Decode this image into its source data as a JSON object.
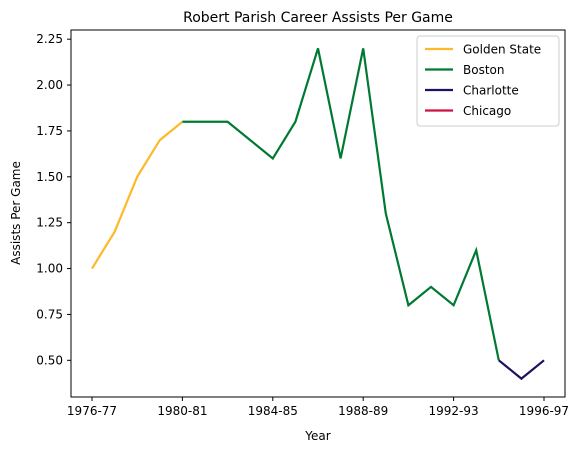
{
  "chart_data": {
    "type": "line",
    "title": "Robert Parish Career Assists Per Game",
    "xlabel": "Year",
    "ylabel": "Assists Per Game",
    "x_ticks": [
      "1976-77",
      "1980-81",
      "1984-85",
      "1988-89",
      "1992-93",
      "1996-97"
    ],
    "y_ticks": [
      "0.50",
      "0.75",
      "1.00",
      "1.25",
      "1.50",
      "1.75",
      "2.00",
      "2.25"
    ],
    "ylim": [
      0.3,
      2.3
    ],
    "legend_position": "top-right",
    "grid": false,
    "series": [
      {
        "name": "Golden State",
        "color": "#FDB927",
        "points": [
          {
            "season": "1976-77",
            "value": 1.0
          },
          {
            "season": "1977-78",
            "value": 1.2
          },
          {
            "season": "1978-79",
            "value": 1.5
          },
          {
            "season": "1979-80",
            "value": 1.7
          },
          {
            "season": "1980-81",
            "value": 1.8
          }
        ]
      },
      {
        "name": "Boston",
        "color": "#007A33",
        "points": [
          {
            "season": "1980-81",
            "value": 1.8
          },
          {
            "season": "1981-82",
            "value": 1.8
          },
          {
            "season": "1982-83",
            "value": 1.8
          },
          {
            "season": "1983-84",
            "value": 1.7
          },
          {
            "season": "1984-85",
            "value": 1.6
          },
          {
            "season": "1985-86",
            "value": 1.8
          },
          {
            "season": "1986-87",
            "value": 2.2
          },
          {
            "season": "1987-88",
            "value": 1.6
          },
          {
            "season": "1988-89",
            "value": 2.2
          },
          {
            "season": "1989-90",
            "value": 1.3
          },
          {
            "season": "1990-91",
            "value": 0.8
          },
          {
            "season": "1991-92",
            "value": 0.9
          },
          {
            "season": "1992-93",
            "value": 0.8
          },
          {
            "season": "1993-94",
            "value": 1.1
          },
          {
            "season": "1994-95",
            "value": 0.5
          }
        ]
      },
      {
        "name": "Charlotte",
        "color": "#1D1160",
        "points": [
          {
            "season": "1994-95",
            "value": 0.5
          },
          {
            "season": "1995-96",
            "value": 0.4
          },
          {
            "season": "1996-97",
            "value": 0.5
          }
        ]
      },
      {
        "name": "Chicago",
        "color": "#CE1141",
        "points": []
      }
    ]
  }
}
